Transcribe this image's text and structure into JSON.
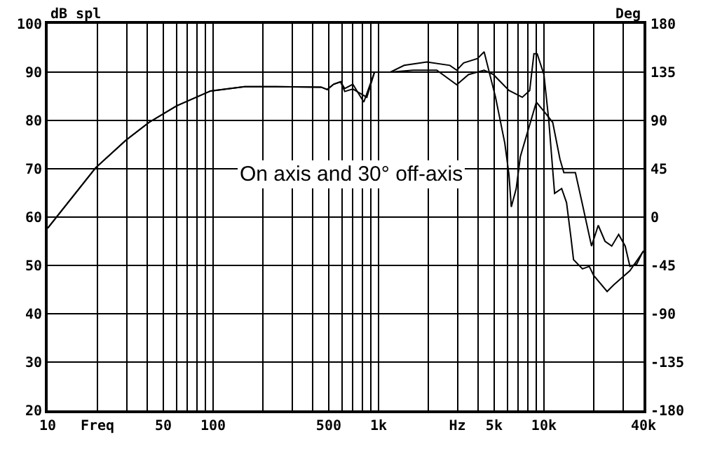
{
  "chart_data": {
    "type": "line",
    "ylabel": "dB spl",
    "y2label": "Deg",
    "annotations": [
      "On axis and 30° off-axis"
    ],
    "series": [
      {
        "color": "#000000",
        "x": [
          10,
          19.5,
          29.7,
          41,
          60,
          96.5,
          155,
          240,
          450,
          490,
          535,
          590,
          625,
          700,
          815,
          946,
          1180,
          1430,
          1960,
          2700,
          2970,
          3270,
          3960,
          4350,
          5100,
          5800,
          6150,
          6350,
          6800,
          7200,
          8200,
          9000,
          10000,
          11300,
          12500,
          13200,
          15500,
          17000,
          19400,
          21300,
          23400,
          25700,
          28300,
          31000,
          33100,
          36400,
          39300,
          40000
        ],
        "values": [
          57.7,
          70.2,
          75.9,
          79.6,
          83,
          86.1,
          87,
          87,
          86.9,
          86.4,
          87.5,
          88,
          86.6,
          87.5,
          83.8,
          90,
          90,
          91.4,
          92.1,
          91.4,
          90.4,
          91.9,
          92.8,
          94.2,
          84.8,
          75.3,
          68.7,
          62.1,
          65.9,
          72.5,
          79.1,
          83.8,
          81.9,
          79.6,
          72,
          69.2,
          69.2,
          63,
          54,
          58.3,
          55,
          54,
          56.4,
          54,
          49.8,
          50.3,
          52.6,
          53
        ]
      },
      {
        "color": "#000000",
        "x": [
          10,
          19.5,
          29.7,
          41,
          60,
          96.5,
          155,
          240,
          450,
          490,
          535,
          590,
          625,
          700,
          850,
          946,
          1180,
          1620,
          2250,
          2970,
          3500,
          4350,
          4950,
          6150,
          7400,
          8200,
          8700,
          9100,
          10000,
          10700,
          11600,
          12800,
          13700,
          14600,
          15100,
          17100,
          18800,
          20000,
          24100,
          26500,
          33100,
          39300,
          40000
        ],
        "values": [
          57.7,
          70.2,
          75.9,
          79.6,
          83,
          86.1,
          87,
          87,
          86.9,
          86.4,
          87.5,
          88,
          86,
          86.5,
          84.8,
          90,
          90,
          90.4,
          90.4,
          87.4,
          89.5,
          90.4,
          89.5,
          86.2,
          84.8,
          86.2,
          93.8,
          93.8,
          89.5,
          80,
          64.9,
          65.9,
          63,
          55.5,
          51.2,
          49.3,
          49.8,
          47.9,
          44.6,
          46,
          48.9,
          52.6,
          53
        ]
      }
    ],
    "log": "x",
    "xlim": [
      10,
      40000
    ],
    "xticks": [
      10,
      {
        "value": 20,
        "label": "Freq"
      },
      {
        "value": 30,
        "label": null
      },
      {
        "value": 40,
        "label": null
      },
      50,
      {
        "value": 60,
        "label": null
      },
      {
        "value": 70,
        "label": null
      },
      {
        "value": 80,
        "label": null
      },
      {
        "value": 90,
        "label": null
      },
      100,
      {
        "value": 200,
        "label": null
      },
      {
        "value": 300,
        "label": null
      },
      {
        "value": 400,
        "label": null
      },
      500,
      {
        "value": 600,
        "label": null
      },
      {
        "value": 700,
        "label": null
      },
      {
        "value": 800,
        "label": null
      },
      {
        "value": 900,
        "label": null
      },
      {
        "value": 1000,
        "label": "1k"
      },
      {
        "value": 2000,
        "label": null
      },
      {
        "value": 3000,
        "label": "Hz"
      },
      {
        "value": 4000,
        "label": null
      },
      {
        "value": 5000,
        "label": "5k"
      },
      {
        "value": 6000,
        "label": null
      },
      {
        "value": 7000,
        "label": null
      },
      {
        "value": 8000,
        "label": null
      },
      {
        "value": 9000,
        "label": null
      },
      {
        "value": 10000,
        "label": "10k"
      },
      {
        "value": 20000,
        "label": null
      },
      {
        "value": 30000,
        "label": null
      },
      {
        "value": 40000,
        "label": "40k"
      }
    ],
    "ylim": [
      20,
      100
    ],
    "yticks": [
      20,
      30,
      40,
      50,
      60,
      70,
      80,
      90,
      100
    ],
    "y2lim": [
      -180,
      180
    ],
    "y2ticks": [
      -180,
      -135,
      -90,
      -45,
      0,
      45,
      90,
      135,
      180
    ],
    "grid": true,
    "marker": "none",
    "line_style": "solid"
  }
}
